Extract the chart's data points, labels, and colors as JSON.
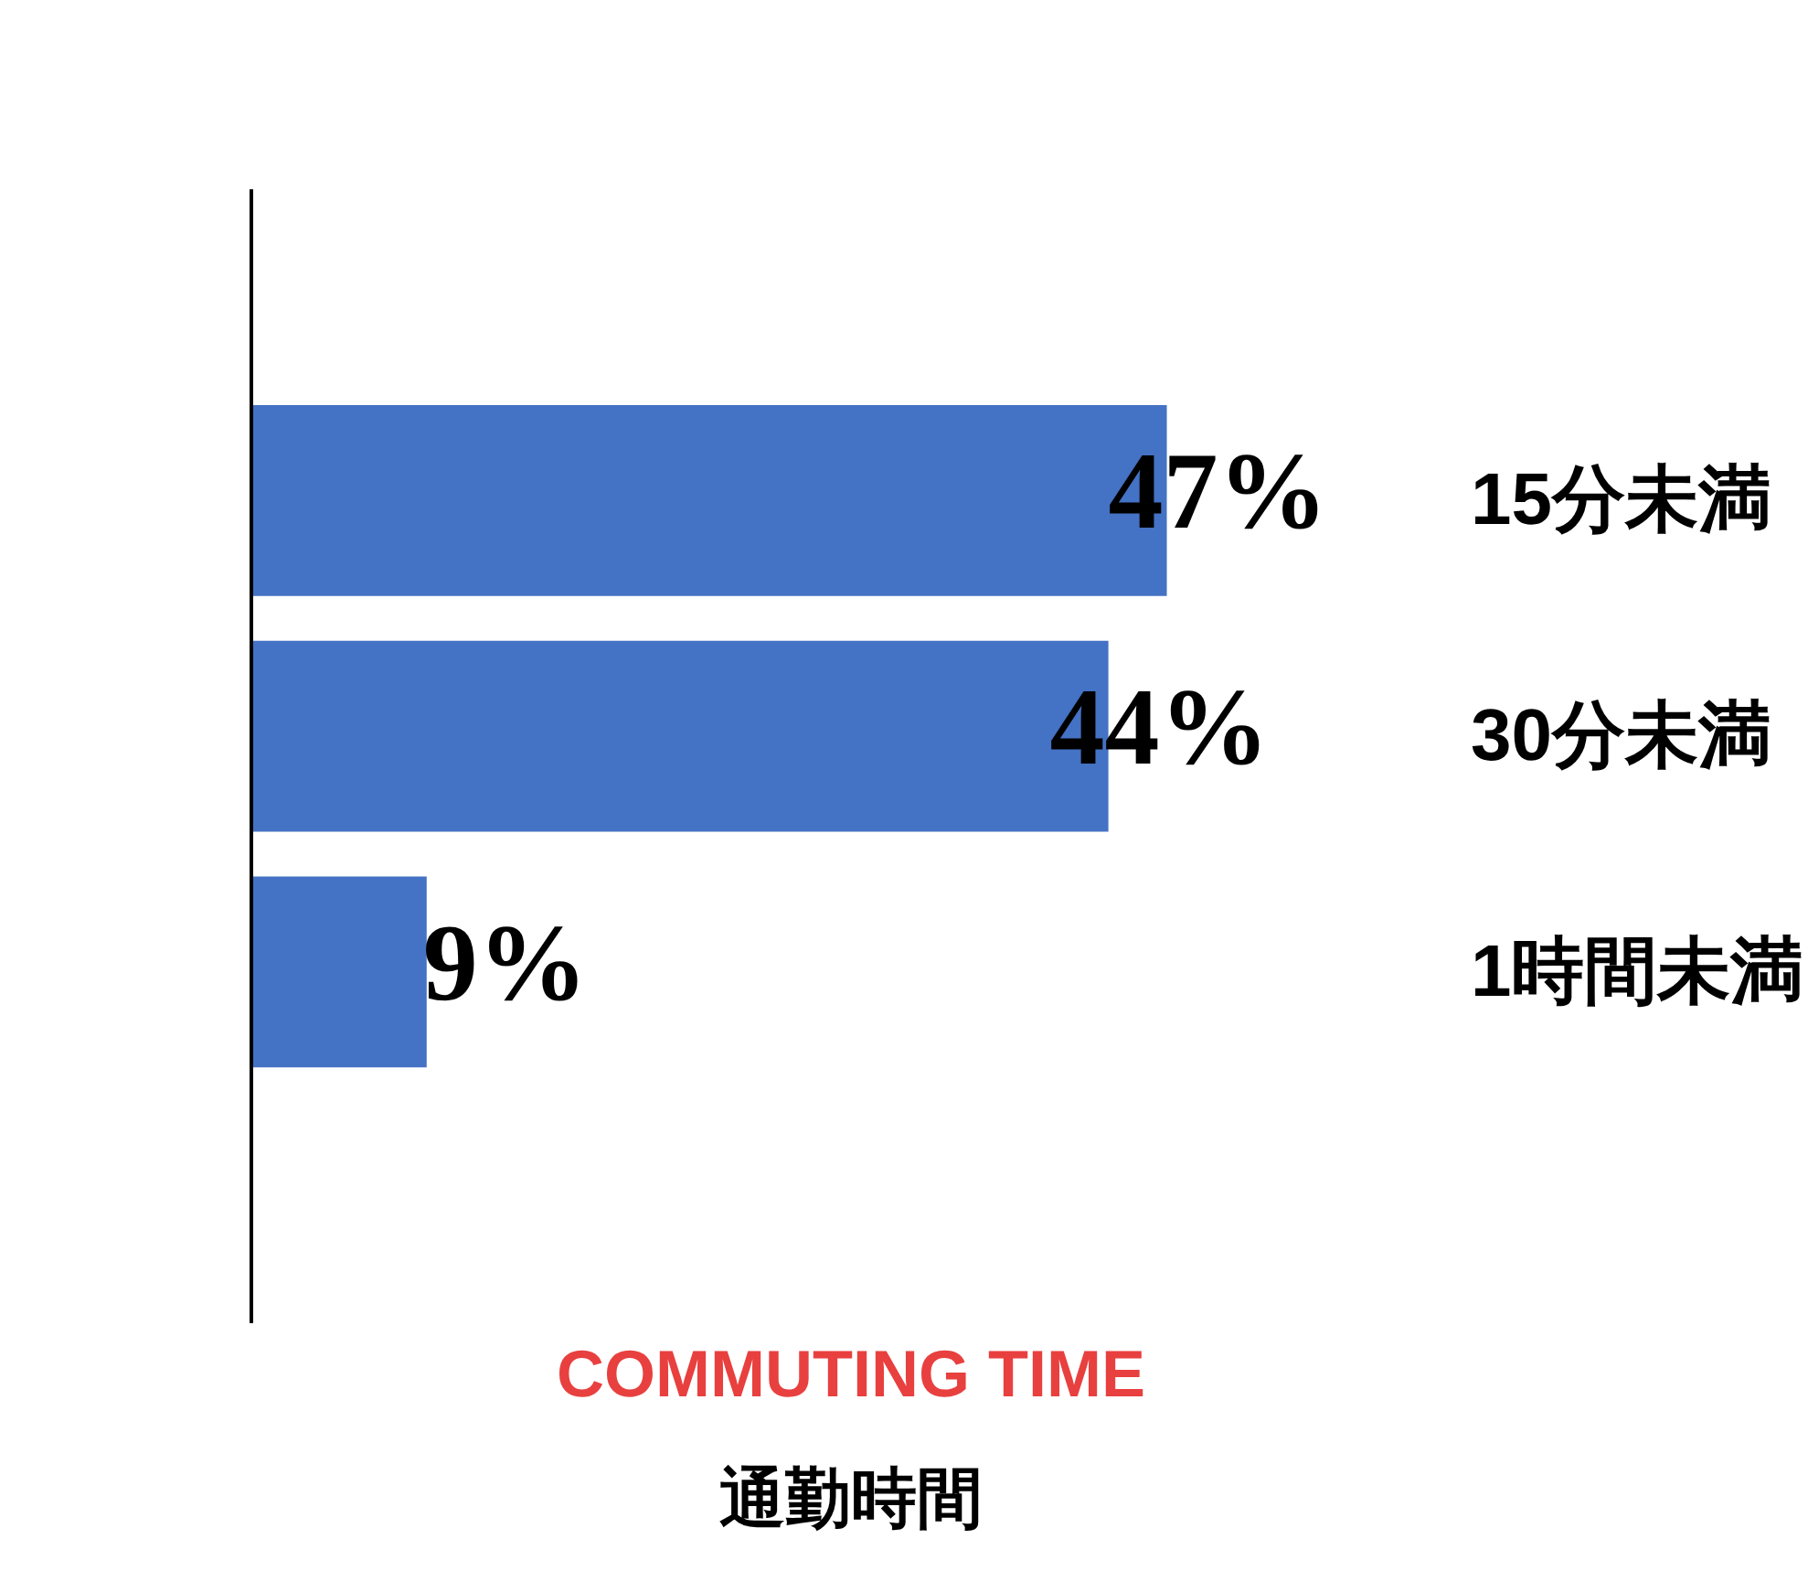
{
  "chart_data": {
    "type": "bar",
    "orientation": "horizontal",
    "title": "通勤時間",
    "subtitle": "COMMUTING TIME",
    "categories": [
      "15分未満",
      "30分未満",
      "1時間未満"
    ],
    "values": [
      47,
      44,
      9
    ],
    "color": "#4472c4",
    "value_labels": [
      "47%",
      "44%",
      "9%"
    ],
    "tick_labels": "y",
    "grid": false
  }
}
